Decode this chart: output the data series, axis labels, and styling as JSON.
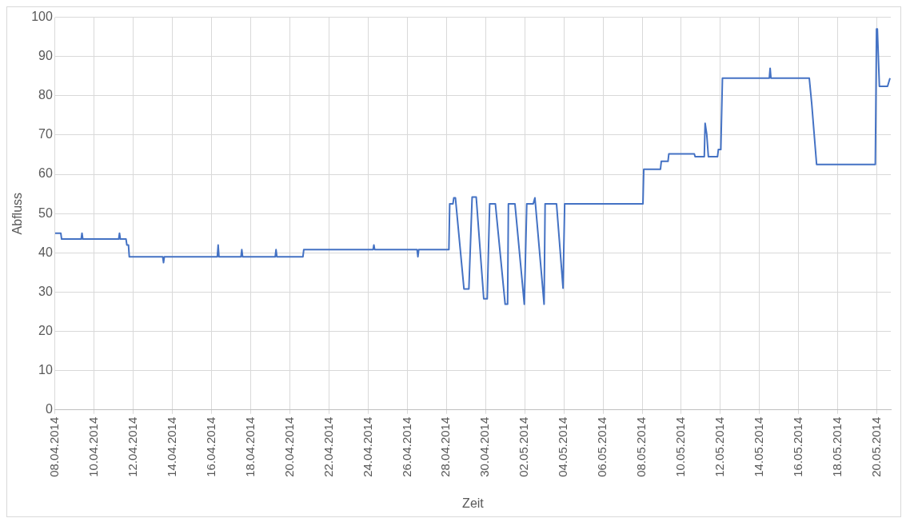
{
  "chart_data": {
    "type": "line",
    "xlabel": "Zeit",
    "ylabel": "Abfluss",
    "x": [
      "2014-04-08T00:00",
      "2014-04-08T07:00",
      "2014-04-08T08:00",
      "2014-04-09T08:00",
      "2014-04-09T09:00",
      "2014-04-09T10:00",
      "2014-04-11T06:00",
      "2014-04-11T07:00",
      "2014-04-11T08:00",
      "2014-04-11T15:00",
      "2014-04-11T16:00",
      "2014-04-11T18:00",
      "2014-04-11T19:00",
      "2014-04-13T12:00",
      "2014-04-13T13:00",
      "2014-04-13T14:00",
      "2014-04-16T07:00",
      "2014-04-16T08:00",
      "2014-04-16T09:00",
      "2014-04-17T12:00",
      "2014-04-17T13:00",
      "2014-04-17T14:00",
      "2014-04-19T06:00",
      "2014-04-19T07:00",
      "2014-04-19T08:00",
      "2014-04-20T16:00",
      "2014-04-20T17:00",
      "2014-04-24T06:00",
      "2014-04-24T07:00",
      "2014-04-24T08:00",
      "2014-04-26T12:00",
      "2014-04-26T13:00",
      "2014-04-26T14:00",
      "2014-04-28T03:00",
      "2014-04-28T04:00",
      "2014-04-28T08:00",
      "2014-04-28T09:00",
      "2014-04-28T11:00",
      "2014-04-28T21:30",
      "2014-04-29T03:30",
      "2014-04-29T07:30",
      "2014-04-29T12:30",
      "2014-04-29T21:45",
      "2014-04-30T02:00",
      "2014-04-30T05:00",
      "2014-04-30T12:00",
      "2014-05-01T00:00",
      "2014-05-01T03:00",
      "2014-05-01T04:00",
      "2014-05-01T12:00",
      "2014-05-01T23:30",
      "2014-05-02T02:30",
      "2014-05-02T10:30",
      "2014-05-02T12:30",
      "2014-05-02T23:45",
      "2014-05-03T01:00",
      "2014-05-03T15:00",
      "2014-05-03T23:00",
      "2014-05-04T01:00",
      "2014-05-08T01:00",
      "2014-05-08T02:00",
      "2014-05-08T22:30",
      "2014-05-08T23:30",
      "2014-05-09T07:45",
      "2014-05-09T08:45",
      "2014-05-10T16:00",
      "2014-05-10T17:00",
      "2014-05-11T04:15",
      "2014-05-11T05:15",
      "2014-05-11T07:15",
      "2014-05-11T09:15",
      "2014-05-11T20:30",
      "2014-05-11T21:30",
      "2014-05-12T00:30",
      "2014-05-12T02:30",
      "2014-05-14T12:00",
      "2014-05-14T13:00",
      "2014-05-14T14:00",
      "2014-05-16T13:00",
      "2014-05-16T16:00",
      "2014-05-16T22:00",
      "2014-05-19T22:00",
      "2014-05-19T23:30",
      "2014-05-20T00:30",
      "2014-05-20T03:00",
      "2014-05-20T13:00",
      "2014-05-20T16:00"
    ],
    "series": [
      {
        "color": "#4472c4",
        "values": [
          45,
          45,
          43.5,
          43.5,
          45,
          43.5,
          43.5,
          45,
          43.5,
          43.5,
          42,
          42,
          39,
          39,
          37.5,
          39,
          39,
          42,
          39,
          39,
          40.8,
          39,
          39,
          40.8,
          39,
          39,
          40.8,
          40.8,
          42,
          40.8,
          40.8,
          39,
          40.8,
          40.8,
          52.5,
          52.5,
          54,
          54,
          30.8,
          30.8,
          54.2,
          54.2,
          28.3,
          28.3,
          52.5,
          52.5,
          26.9,
          26.9,
          52.5,
          52.5,
          26.9,
          52.5,
          52.5,
          54,
          26.9,
          52.5,
          52.5,
          31,
          52.5,
          52.5,
          61.3,
          61.3,
          63.3,
          63.3,
          65.2,
          65.2,
          64.5,
          64.5,
          73,
          70.2,
          64.5,
          64.5,
          66.3,
          66.3,
          84.5,
          84.5,
          87,
          84.5,
          84.5,
          78,
          62.5,
          62.5,
          97,
          97,
          82.4,
          82.4,
          84.5
        ]
      }
    ],
    "xlim": [
      "2014-04-08T00:00",
      "2014-05-20T17:00"
    ],
    "xticks": [
      {
        "value": "2014-04-08",
        "label": "08.04.2014"
      },
      {
        "value": "2014-04-10",
        "label": "10.04.2014"
      },
      {
        "value": "2014-04-12",
        "label": "12.04.2014"
      },
      {
        "value": "2014-04-14",
        "label": "14.04.2014"
      },
      {
        "value": "2014-04-16",
        "label": "16.04.2014"
      },
      {
        "value": "2014-04-18",
        "label": "18.04.2014"
      },
      {
        "value": "2014-04-20",
        "label": "20.04.2014"
      },
      {
        "value": "2014-04-22",
        "label": "22.04.2014"
      },
      {
        "value": "2014-04-24",
        "label": "24.04.2014"
      },
      {
        "value": "2014-04-26",
        "label": "26.04.2014"
      },
      {
        "value": "2014-04-28",
        "label": "28.04.2014"
      },
      {
        "value": "2014-04-30",
        "label": "30.04.2014"
      },
      {
        "value": "2014-05-02",
        "label": "02.05.2014"
      },
      {
        "value": "2014-05-04",
        "label": "04.05.2014"
      },
      {
        "value": "2014-05-06",
        "label": "06.05.2014"
      },
      {
        "value": "2014-05-08",
        "label": "08.05.2014"
      },
      {
        "value": "2014-05-10",
        "label": "10.05.2014"
      },
      {
        "value": "2014-05-12",
        "label": "12.05.2014"
      },
      {
        "value": "2014-05-14",
        "label": "14.05.2014"
      },
      {
        "value": "2014-05-16",
        "label": "16.05.2014"
      },
      {
        "value": "2014-05-18",
        "label": "18.05.2014"
      },
      {
        "value": "2014-05-20",
        "label": "20.05.2014"
      }
    ],
    "ylim": [
      0,
      100
    ],
    "yticks": [
      0,
      10,
      20,
      30,
      40,
      50,
      60,
      70,
      80,
      90,
      100
    ],
    "grid": true,
    "legend": false,
    "marker": "none",
    "line_style": "solid"
  }
}
